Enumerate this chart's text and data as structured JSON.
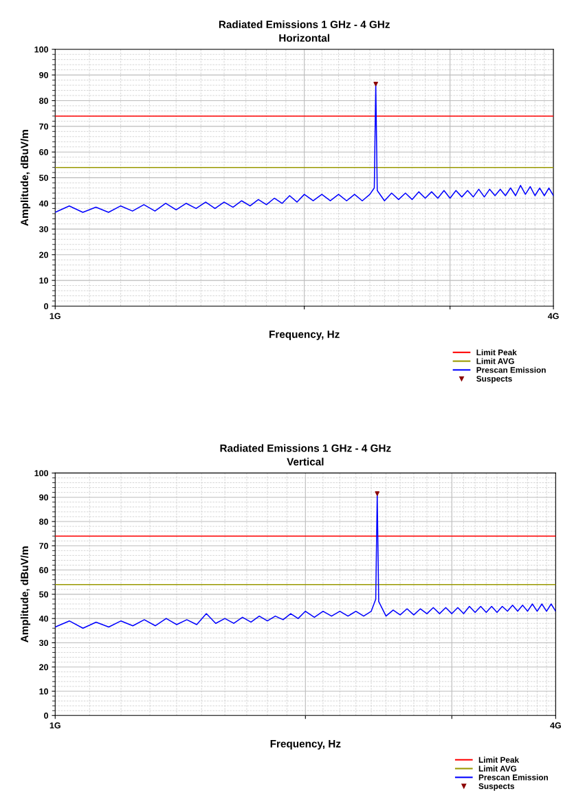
{
  "chart_data": [
    {
      "type": "line",
      "title": "Radiated Emissions 1 GHz - 4 GHz",
      "subtitle": "Horizontal",
      "xlabel": "Frequency, Hz",
      "ylabel": "Amplitude, dBuV/m",
      "log": "x",
      "xlim": [
        1,
        4
      ],
      "xticks": [
        {
          "value": 1,
          "label": "1G"
        },
        {
          "value": 2,
          "label": null
        },
        {
          "value": 3,
          "label": null
        },
        {
          "value": 4,
          "label": "4G"
        }
      ],
      "ylim": [
        0,
        100
      ],
      "yticks": [
        0,
        10,
        20,
        30,
        40,
        50,
        60,
        70,
        80,
        90,
        100
      ],
      "grid": true,
      "legend": "bottom right",
      "series": [
        {
          "name": "Limit Peak",
          "color": "#ff0000",
          "x": [
            1,
            4
          ],
          "values": [
            74,
            74
          ]
        },
        {
          "name": "Limit AVG",
          "color": "#999900",
          "x": [
            1,
            4
          ],
          "values": [
            54,
            54
          ]
        },
        {
          "name": "Prescan Emission",
          "color": "#0000ff",
          "x": [
            1.0,
            1.04,
            1.08,
            1.12,
            1.16,
            1.2,
            1.24,
            1.28,
            1.32,
            1.36,
            1.4,
            1.44,
            1.48,
            1.52,
            1.56,
            1.6,
            1.64,
            1.68,
            1.72,
            1.76,
            1.8,
            1.84,
            1.88,
            1.92,
            1.96,
            2.0,
            2.05,
            2.1,
            2.15,
            2.2,
            2.25,
            2.3,
            2.35,
            2.4,
            2.43,
            2.44,
            2.45,
            2.5,
            2.55,
            2.6,
            2.65,
            2.7,
            2.75,
            2.8,
            2.85,
            2.9,
            2.95,
            3.0,
            3.05,
            3.1,
            3.15,
            3.2,
            3.25,
            3.3,
            3.35,
            3.4,
            3.45,
            3.5,
            3.55,
            3.6,
            3.65,
            3.7,
            3.75,
            3.8,
            3.85,
            3.9,
            3.95,
            4.0
          ],
          "values": [
            36.5,
            39,
            36.5,
            38.5,
            36.5,
            39,
            37,
            39.5,
            37,
            40,
            37.5,
            40,
            38,
            40.5,
            38,
            40.5,
            38.5,
            41,
            39,
            41.5,
            39.5,
            42,
            40,
            43,
            40.5,
            43.5,
            41,
            43.5,
            41,
            43.5,
            41,
            43.5,
            41,
            43.5,
            46,
            86.5,
            45,
            41,
            44,
            41.5,
            44,
            41.5,
            44.5,
            42,
            44.5,
            42,
            45,
            42,
            45,
            42.5,
            45,
            42.5,
            45.5,
            42.5,
            45.5,
            43,
            45.5,
            43,
            46,
            43,
            47,
            43.5,
            46.5,
            43,
            46,
            43,
            46,
            43
          ]
        },
        {
          "name": "Suspects",
          "type": "scatter",
          "marker": "triangle",
          "color": "#8b0000",
          "x": [
            2.44
          ],
          "values": [
            86.5
          ]
        }
      ]
    },
    {
      "type": "line",
      "title": "Radiated Emissions 1 GHz - 4 GHz",
      "subtitle": "Vertical",
      "xlabel": "Frequency, Hz",
      "ylabel": "Amplitude, dBuV/m",
      "log": "x",
      "xlim": [
        1,
        4
      ],
      "xticks": [
        {
          "value": 1,
          "label": "1G"
        },
        {
          "value": 2,
          "label": null
        },
        {
          "value": 3,
          "label": null
        },
        {
          "value": 4,
          "label": "4G"
        }
      ],
      "ylim": [
        0,
        100
      ],
      "yticks": [
        0,
        10,
        20,
        30,
        40,
        50,
        60,
        70,
        80,
        90,
        100
      ],
      "grid": true,
      "legend": "bottom right",
      "series": [
        {
          "name": "Limit Peak",
          "color": "#ff0000",
          "x": [
            1,
            4
          ],
          "values": [
            74,
            74
          ]
        },
        {
          "name": "Limit AVG",
          "color": "#999900",
          "x": [
            1,
            4
          ],
          "values": [
            54,
            54
          ]
        },
        {
          "name": "Prescan Emission",
          "color": "#0000ff",
          "x": [
            1.0,
            1.04,
            1.08,
            1.12,
            1.16,
            1.2,
            1.24,
            1.28,
            1.32,
            1.36,
            1.4,
            1.44,
            1.48,
            1.52,
            1.56,
            1.6,
            1.64,
            1.68,
            1.72,
            1.76,
            1.8,
            1.84,
            1.88,
            1.92,
            1.96,
            2.0,
            2.05,
            2.1,
            2.15,
            2.2,
            2.25,
            2.3,
            2.35,
            2.4,
            2.43,
            2.44,
            2.45,
            2.5,
            2.55,
            2.6,
            2.65,
            2.7,
            2.75,
            2.8,
            2.85,
            2.9,
            2.95,
            3.0,
            3.05,
            3.1,
            3.15,
            3.2,
            3.25,
            3.3,
            3.35,
            3.4,
            3.45,
            3.5,
            3.55,
            3.6,
            3.65,
            3.7,
            3.75,
            3.8,
            3.85,
            3.9,
            3.95,
            4.0
          ],
          "values": [
            36.5,
            39,
            36,
            38.5,
            36.5,
            39,
            37,
            39.5,
            37,
            40,
            37.5,
            39.5,
            37.5,
            42,
            38,
            40,
            38,
            40.5,
            38.5,
            41,
            39,
            41,
            39.5,
            42,
            40,
            43,
            40.5,
            43,
            41,
            43,
            41,
            43,
            41,
            43,
            48,
            91.5,
            47,
            41,
            43.5,
            41.5,
            44,
            41.5,
            44,
            42,
            44.5,
            42,
            44.5,
            42,
            44.5,
            42,
            45,
            42.5,
            45,
            42.5,
            45,
            42.5,
            45,
            43,
            45.5,
            43,
            45.5,
            43,
            46,
            43,
            46,
            43,
            46,
            43
          ]
        },
        {
          "name": "Suspects",
          "type": "scatter",
          "marker": "triangle",
          "color": "#8b0000",
          "x": [
            2.44
          ],
          "values": [
            91.5
          ]
        }
      ]
    }
  ]
}
